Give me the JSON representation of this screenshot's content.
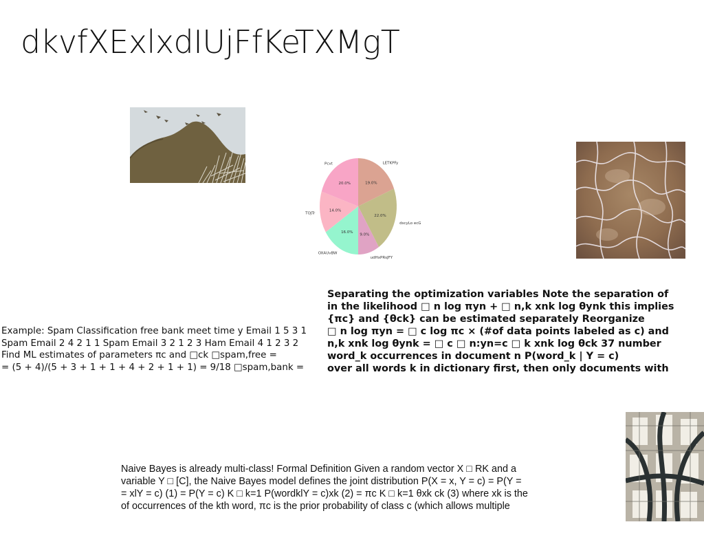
{
  "title": "dkvfXExlxdIUjFfKeTXMgT",
  "chart_data": {
    "type": "pie",
    "categories": [
      "LETKPFy",
      "dscyLo ecG",
      "udHxPRsJFY",
      "OXAUvBW",
      "TOJTr",
      "Pcvt"
    ],
    "values": [
      19.0,
      22.0,
      9.0,
      16.0,
      14.0,
      20.0
    ],
    "labels": [
      "19.0%",
      "22.0%",
      "9.0%",
      "16.0%",
      "14.0%",
      "20.0%"
    ],
    "colors": [
      "#dba392",
      "#c1bd88",
      "#e0a3c4",
      "#95f5ce",
      "#fbb5c4",
      "#f8a5c6"
    ]
  },
  "text_blocks": {
    "spam": [
      "Example: Spam Classification free bank meet time y Email 1 5 3 1",
      "Spam Email 2 4 2 1 1 Spam Email 3 2 1 2 3 Ham Email 4 1 2 3 2",
      "Find ML estimates of parameters πc and □ck □spam,free =",
      "= (5 + 4)/(5 + 3 + 1 + 1 + 4 + 2 + 1 + 1) = 9/18 □spam,bank ="
    ],
    "optimization": [
      "Separating the optimization variables Note the separation of",
      "in the likelihood □ n log πyn + □ n,k xnk log θynk this implies",
      "{πc} and {θck} can be estimated separately Reorganize",
      "□ n log πyn = □ c log πc × (#of data points labeled as c) and",
      "n,k xnk log θynk = □ c □ n:yn=c □ k xnk log θck 37 number",
      "word_k occurrences in document n P(word_k | Y = c)",
      "over all words k in dictionary first, then only documents with"
    ],
    "naive_bayes": [
      "Naive Bayes is already multi-class! Formal Definition Given a random vector X □ RK and a",
      "variable Y □ [C], the Naive Bayes model defines the joint distribution P(X = x, Y = c) = P(Y =",
      "= xlY = c) (1) = P(Y = c) K □ k=1 P(wordklY = c)xk (2) = πc K □ k=1 θxk ck (3) where xk is the",
      "of occurrences of the kth word, πc is the prior probability of class c (which allows multiple"
    ]
  }
}
